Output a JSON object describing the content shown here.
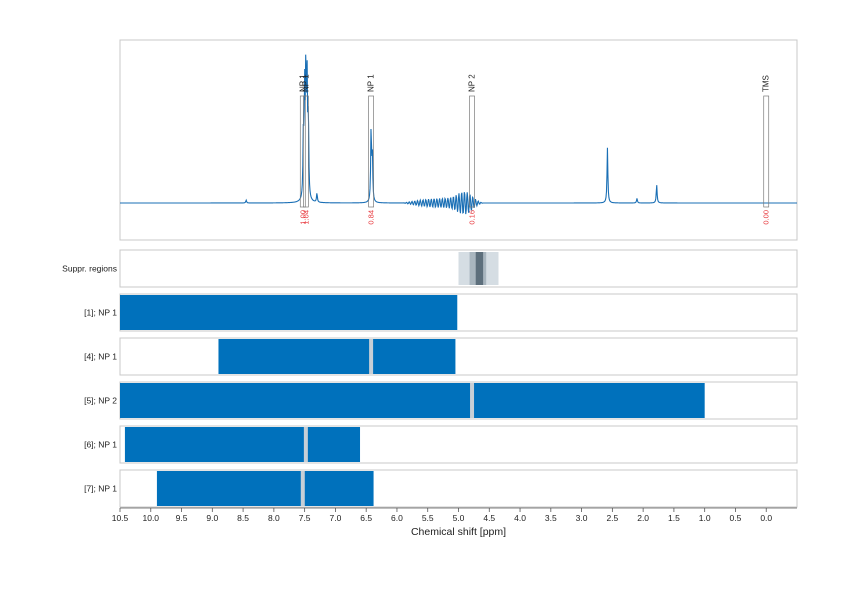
{
  "chart_data": {
    "type": "line",
    "x_axis": {
      "label": "Chemical shift [ppm]",
      "range": [
        10.5,
        -0.5
      ],
      "reversed": true,
      "ticks": [
        10.5,
        10.0,
        9.5,
        9.0,
        8.5,
        8.0,
        7.5,
        7.0,
        6.5,
        6.0,
        5.5,
        5.0,
        4.5,
        4.0,
        3.5,
        3.0,
        2.5,
        2.0,
        1.5,
        1.0,
        0.5,
        0.0
      ],
      "tick_labels": [
        "10.5",
        "10.0",
        "9.5",
        "9.0",
        "8.5",
        "8.0",
        "7.5",
        "7.0",
        "6.5",
        "6.0",
        "5.5",
        "5.0",
        "4.5",
        "4.0",
        "3.5",
        "3.0",
        "2.5",
        "2.0",
        "1.5",
        "1.0",
        "0.5",
        "0.0"
      ]
    },
    "grid": "vertical dotted",
    "colors": {
      "spectrum": "#1a6fb5",
      "bar": "#0071bc",
      "shift_line": "#c7cfd6",
      "integral_label": "#e8383d",
      "frame": "#c8c8c8",
      "suppr_light": "#d5dde3",
      "suppr_mid": "#a9b6bf",
      "suppr_dark": "#5d6f7c"
    },
    "spectrum": {
      "baseline_level": 0.0,
      "peaks": [
        {
          "ppm": 7.52,
          "height": 0.28
        },
        {
          "ppm": 7.5,
          "height": 0.45
        },
        {
          "ppm": 7.48,
          "height": 0.55
        },
        {
          "ppm": 7.46,
          "height": 0.48
        },
        {
          "ppm": 7.44,
          "height": 0.35
        },
        {
          "ppm": 7.3,
          "height": 0.04
        },
        {
          "ppm": 8.45,
          "height": 0.012
        },
        {
          "ppm": 6.42,
          "height": 0.32
        },
        {
          "ppm": 6.4,
          "height": 0.2
        },
        {
          "ppm": 2.58,
          "height": 0.24
        },
        {
          "ppm": 2.1,
          "height": 0.02
        },
        {
          "ppm": 1.78,
          "height": 0.08
        }
      ],
      "water_region": [
        5.9,
        4.6
      ]
    },
    "annotations": [
      {
        "ppm": 7.53,
        "label": "NP 1",
        "integral": "1.00"
      },
      {
        "ppm": 7.48,
        "label": "NP 1",
        "integral": "1.04"
      },
      {
        "ppm": 6.42,
        "label": "NP 1",
        "integral": "0.84"
      },
      {
        "ppm": 4.78,
        "label": "NP 2",
        "integral": "0.16"
      },
      {
        "ppm": 0.0,
        "label": "TMS",
        "integral": "0.00"
      }
    ],
    "suppression_track": {
      "label": "Suppr. regions",
      "regions": [
        {
          "from": 5.0,
          "to": 4.35,
          "shade": "light"
        },
        {
          "from": 4.82,
          "to": 4.55,
          "shade": "mid"
        },
        {
          "from": 4.72,
          "to": 4.6,
          "shade": "dark"
        }
      ]
    },
    "tracks": [
      {
        "label": "[1]; NP 1",
        "range": [
          10.5,
          5.02
        ],
        "shift_lines": []
      },
      {
        "label": "[4]; NP 1",
        "range": [
          8.9,
          5.05
        ],
        "shift_lines": [
          6.42
        ]
      },
      {
        "label": "[5]; NP 2",
        "range": [
          10.5,
          1.0
        ],
        "shift_lines": [
          4.78
        ]
      },
      {
        "label": "[6]; NP 1",
        "range": [
          10.42,
          6.6
        ],
        "shift_lines": [
          7.48
        ]
      },
      {
        "label": "[7]; NP 1",
        "range": [
          9.9,
          6.38
        ],
        "shift_lines": [
          7.53
        ]
      }
    ]
  }
}
